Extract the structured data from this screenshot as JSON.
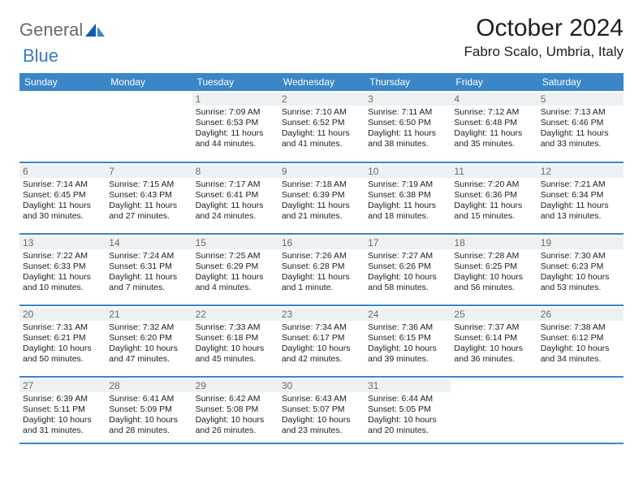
{
  "logo": {
    "text1": "General",
    "text2": "Blue"
  },
  "title": "October 2024",
  "location": "Fabro Scalo, Umbria, Italy",
  "colors": {
    "header_bg": "#3a86c8",
    "header_text": "#ffffff",
    "daynum_bg": "#eef1f3",
    "daynum_text": "#6b6b6b",
    "border": "#3a86c8",
    "logo_gray": "#6a6a6a",
    "logo_blue": "#3a7abf"
  },
  "dow": [
    "Sunday",
    "Monday",
    "Tuesday",
    "Wednesday",
    "Thursday",
    "Friday",
    "Saturday"
  ],
  "weeks": [
    [
      null,
      null,
      {
        "n": "1",
        "sr": "7:09 AM",
        "ss": "6:53 PM",
        "dl": "11 hours and 44 minutes."
      },
      {
        "n": "2",
        "sr": "7:10 AM",
        "ss": "6:52 PM",
        "dl": "11 hours and 41 minutes."
      },
      {
        "n": "3",
        "sr": "7:11 AM",
        "ss": "6:50 PM",
        "dl": "11 hours and 38 minutes."
      },
      {
        "n": "4",
        "sr": "7:12 AM",
        "ss": "6:48 PM",
        "dl": "11 hours and 35 minutes."
      },
      {
        "n": "5",
        "sr": "7:13 AM",
        "ss": "6:46 PM",
        "dl": "11 hours and 33 minutes."
      }
    ],
    [
      {
        "n": "6",
        "sr": "7:14 AM",
        "ss": "6:45 PM",
        "dl": "11 hours and 30 minutes."
      },
      {
        "n": "7",
        "sr": "7:15 AM",
        "ss": "6:43 PM",
        "dl": "11 hours and 27 minutes."
      },
      {
        "n": "8",
        "sr": "7:17 AM",
        "ss": "6:41 PM",
        "dl": "11 hours and 24 minutes."
      },
      {
        "n": "9",
        "sr": "7:18 AM",
        "ss": "6:39 PM",
        "dl": "11 hours and 21 minutes."
      },
      {
        "n": "10",
        "sr": "7:19 AM",
        "ss": "6:38 PM",
        "dl": "11 hours and 18 minutes."
      },
      {
        "n": "11",
        "sr": "7:20 AM",
        "ss": "6:36 PM",
        "dl": "11 hours and 15 minutes."
      },
      {
        "n": "12",
        "sr": "7:21 AM",
        "ss": "6:34 PM",
        "dl": "11 hours and 13 minutes."
      }
    ],
    [
      {
        "n": "13",
        "sr": "7:22 AM",
        "ss": "6:33 PM",
        "dl": "11 hours and 10 minutes."
      },
      {
        "n": "14",
        "sr": "7:24 AM",
        "ss": "6:31 PM",
        "dl": "11 hours and 7 minutes."
      },
      {
        "n": "15",
        "sr": "7:25 AM",
        "ss": "6:29 PM",
        "dl": "11 hours and 4 minutes."
      },
      {
        "n": "16",
        "sr": "7:26 AM",
        "ss": "6:28 PM",
        "dl": "11 hours and 1 minute."
      },
      {
        "n": "17",
        "sr": "7:27 AM",
        "ss": "6:26 PM",
        "dl": "10 hours and 58 minutes."
      },
      {
        "n": "18",
        "sr": "7:28 AM",
        "ss": "6:25 PM",
        "dl": "10 hours and 56 minutes."
      },
      {
        "n": "19",
        "sr": "7:30 AM",
        "ss": "6:23 PM",
        "dl": "10 hours and 53 minutes."
      }
    ],
    [
      {
        "n": "20",
        "sr": "7:31 AM",
        "ss": "6:21 PM",
        "dl": "10 hours and 50 minutes."
      },
      {
        "n": "21",
        "sr": "7:32 AM",
        "ss": "6:20 PM",
        "dl": "10 hours and 47 minutes."
      },
      {
        "n": "22",
        "sr": "7:33 AM",
        "ss": "6:18 PM",
        "dl": "10 hours and 45 minutes."
      },
      {
        "n": "23",
        "sr": "7:34 AM",
        "ss": "6:17 PM",
        "dl": "10 hours and 42 minutes."
      },
      {
        "n": "24",
        "sr": "7:36 AM",
        "ss": "6:15 PM",
        "dl": "10 hours and 39 minutes."
      },
      {
        "n": "25",
        "sr": "7:37 AM",
        "ss": "6:14 PM",
        "dl": "10 hours and 36 minutes."
      },
      {
        "n": "26",
        "sr": "7:38 AM",
        "ss": "6:12 PM",
        "dl": "10 hours and 34 minutes."
      }
    ],
    [
      {
        "n": "27",
        "sr": "6:39 AM",
        "ss": "5:11 PM",
        "dl": "10 hours and 31 minutes."
      },
      {
        "n": "28",
        "sr": "6:41 AM",
        "ss": "5:09 PM",
        "dl": "10 hours and 28 minutes."
      },
      {
        "n": "29",
        "sr": "6:42 AM",
        "ss": "5:08 PM",
        "dl": "10 hours and 26 minutes."
      },
      {
        "n": "30",
        "sr": "6:43 AM",
        "ss": "5:07 PM",
        "dl": "10 hours and 23 minutes."
      },
      {
        "n": "31",
        "sr": "6:44 AM",
        "ss": "5:05 PM",
        "dl": "10 hours and 20 minutes."
      },
      null,
      null
    ]
  ],
  "labels": {
    "sunrise": "Sunrise: ",
    "sunset": "Sunset: ",
    "daylight": "Daylight: "
  }
}
